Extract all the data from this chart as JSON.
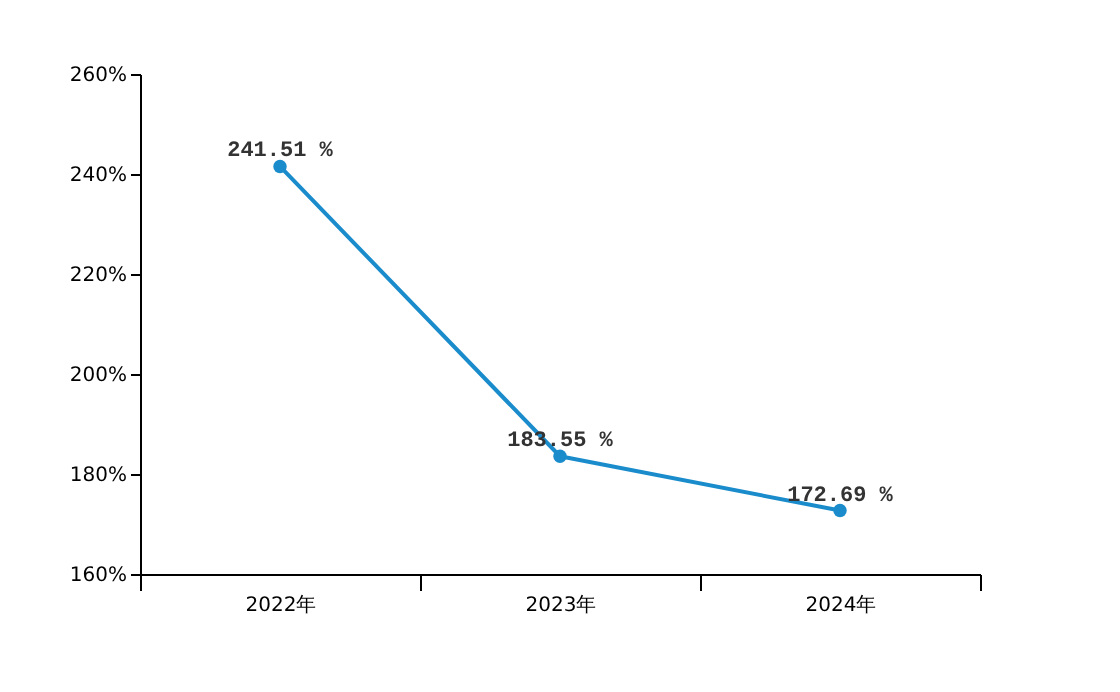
{
  "chart_data": {
    "type": "line",
    "categories": [
      "2022年",
      "2023年",
      "2024年"
    ],
    "series": [
      {
        "color": "#1a8ccc",
        "values": [
          241.51,
          183.55,
          172.69
        ],
        "value_labels": [
          "241.51 %",
          "183.55 %",
          "172.69 %"
        ]
      }
    ],
    "ylim": [
      160,
      260
    ],
    "yticks": [
      {
        "value": 160,
        "label": "160%"
      },
      {
        "value": 180,
        "label": "180%"
      },
      {
        "value": 200,
        "label": "200%"
      },
      {
        "value": 220,
        "label": "220%"
      },
      {
        "value": 240,
        "label": "240%"
      },
      {
        "value": 260,
        "label": "260%"
      }
    ],
    "marker": "circle",
    "line_style": "solid",
    "grid": false
  }
}
